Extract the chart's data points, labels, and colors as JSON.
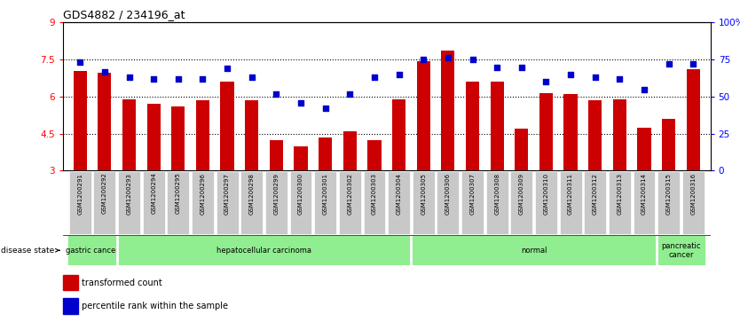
{
  "title": "GDS4882 / 234196_at",
  "samples": [
    "GSM1200291",
    "GSM1200292",
    "GSM1200293",
    "GSM1200294",
    "GSM1200295",
    "GSM1200296",
    "GSM1200297",
    "GSM1200298",
    "GSM1200299",
    "GSM1200300",
    "GSM1200301",
    "GSM1200302",
    "GSM1200303",
    "GSM1200304",
    "GSM1200305",
    "GSM1200306",
    "GSM1200307",
    "GSM1200308",
    "GSM1200309",
    "GSM1200310",
    "GSM1200311",
    "GSM1200312",
    "GSM1200313",
    "GSM1200314",
    "GSM1200315",
    "GSM1200316"
  ],
  "transformed_count": [
    7.05,
    6.95,
    5.9,
    5.7,
    5.6,
    5.85,
    6.6,
    5.85,
    4.25,
    4.0,
    4.35,
    4.6,
    4.25,
    5.9,
    7.45,
    7.85,
    6.6,
    6.6,
    4.7,
    6.15,
    6.1,
    5.85,
    5.9,
    4.75,
    5.1,
    7.1
  ],
  "percentile_rank": [
    73,
    67,
    63,
    62,
    62,
    62,
    69,
    63,
    52,
    46,
    42,
    52,
    63,
    65,
    75,
    76,
    75,
    70,
    70,
    60,
    65,
    63,
    62,
    55,
    72,
    72
  ],
  "bar_color": "#cc0000",
  "dot_color": "#0000cc",
  "ylim_left": [
    3,
    9
  ],
  "ylim_right": [
    0,
    100
  ],
  "yticks_left": [
    3,
    4.5,
    6,
    7.5,
    9
  ],
  "ytick_labels_left": [
    "3",
    "4.5",
    "6",
    "7.5",
    "9"
  ],
  "yticks_right": [
    0,
    25,
    50,
    75,
    100
  ],
  "ytick_labels_right": [
    "0",
    "25",
    "50",
    "75",
    "100%"
  ],
  "hlines": [
    4.5,
    6.0,
    7.5
  ],
  "group_boundaries": [
    {
      "label": "gastric cancer",
      "start": 0,
      "end": 2
    },
    {
      "label": "hepatocellular carcinoma",
      "start": 2,
      "end": 14
    },
    {
      "label": "normal",
      "start": 14,
      "end": 24
    },
    {
      "label": "pancreatic\ncancer",
      "start": 24,
      "end": 26
    }
  ],
  "group_color": "#90EE90",
  "group_separator_color": "#006400",
  "disease_state_label": "disease state",
  "legend_items": [
    {
      "label": "transformed count",
      "color": "#cc0000"
    },
    {
      "label": "percentile rank within the sample",
      "color": "#0000cc"
    }
  ],
  "xticklabel_bg": "#c8c8c8",
  "xticklabel_border": "#ffffff"
}
